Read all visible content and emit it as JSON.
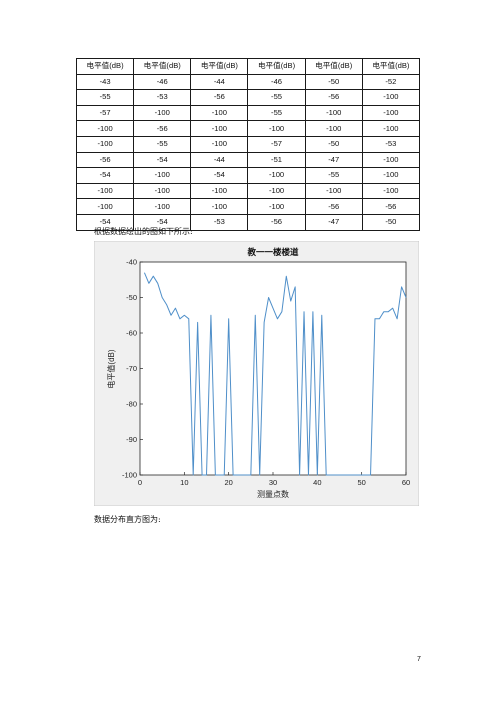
{
  "table": {
    "headers": [
      "电平值(dB)",
      "电平值(dB)",
      "电平值(dB)",
      "电平值(dB)",
      "电平值(dB)",
      "电平值(dB)"
    ],
    "rows": [
      [
        "-43",
        "-46",
        "-44",
        "-46",
        "-50",
        "-52"
      ],
      [
        "-55",
        "-53",
        "-56",
        "-55",
        "-56",
        "-100"
      ],
      [
        "-57",
        "-100",
        "-100",
        "-55",
        "-100",
        "-100"
      ],
      [
        "-100",
        "-56",
        "-100",
        "-100",
        "-100",
        "-100"
      ],
      [
        "-100",
        "-55",
        "-100",
        "-57",
        "-50",
        "-53"
      ],
      [
        "-56",
        "-54",
        "-44",
        "-51",
        "-47",
        "-100"
      ],
      [
        "-54",
        "-100",
        "-54",
        "-100",
        "-55",
        "-100"
      ],
      [
        "-100",
        "-100",
        "-100",
        "-100",
        "-100",
        "-100"
      ],
      [
        "-100",
        "-100",
        "-100",
        "-100",
        "-56",
        "-56"
      ],
      [
        "-54",
        "-54",
        "-53",
        "-56",
        "-47",
        "-50"
      ]
    ]
  },
  "text": {
    "caption_plot": "根据数据绘出的图如下所示:",
    "caption_hist": "数据分布直方图为:",
    "page_number": "7"
  },
  "chart_data": {
    "type": "line",
    "title": "教一一楼楼道",
    "xlabel": "测量点数",
    "ylabel": "电平值(dB)",
    "xlim": [
      0,
      60
    ],
    "ylim": [
      -100,
      -40
    ],
    "xticks": [
      0,
      10,
      20,
      30,
      40,
      50,
      60
    ],
    "yticks": [
      -100,
      -90,
      -80,
      -70,
      -60,
      -50,
      -40
    ],
    "grid": false,
    "line_color": "#4f8fc9",
    "series": [
      {
        "x": [
          1,
          2,
          3,
          4,
          5,
          6,
          7,
          8,
          9,
          10,
          11,
          12,
          13,
          14,
          15,
          16,
          17,
          18,
          19,
          20,
          21,
          22,
          23,
          24,
          25,
          26,
          27,
          28,
          29,
          30,
          31,
          32,
          33,
          34,
          35,
          36,
          37,
          38,
          39,
          40,
          41,
          42,
          43,
          44,
          45,
          46,
          47,
          48,
          49,
          50,
          51,
          52,
          53,
          54,
          55,
          56,
          57,
          58,
          59,
          60
        ],
        "values": [
          -43,
          -46,
          -44,
          -46,
          -50,
          -52,
          -55,
          -53,
          -56,
          -55,
          -56,
          -100,
          -57,
          -100,
          -100,
          -55,
          -100,
          -100,
          -100,
          -56,
          -100,
          -100,
          -100,
          -100,
          -100,
          -55,
          -100,
          -57,
          -50,
          -53,
          -56,
          -54,
          -44,
          -51,
          -47,
          -100,
          -54,
          -100,
          -54,
          -100,
          -55,
          -100,
          -100,
          -100,
          -100,
          -100,
          -100,
          -100,
          -100,
          -100,
          -100,
          -100,
          -56,
          -56,
          -54,
          -54,
          -53,
          -56,
          -47,
          -50
        ]
      }
    ]
  }
}
